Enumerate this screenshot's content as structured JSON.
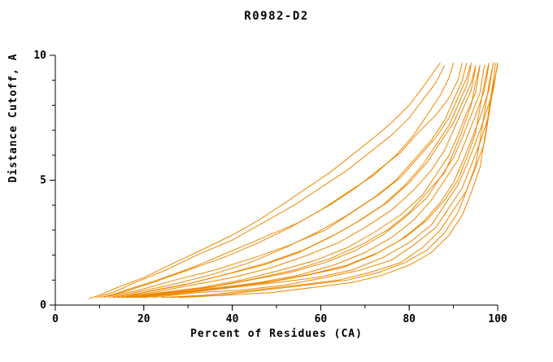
{
  "chart_data": {
    "type": "line",
    "title": "R0982-D2",
    "xlabel": "Percent of Residues (CA)",
    "ylabel": "Distance Cutoff, A",
    "xlim": [
      0,
      100
    ],
    "ylim": [
      0,
      10
    ],
    "x_ticks": [
      0,
      20,
      40,
      60,
      80,
      100
    ],
    "y_ticks": [
      0,
      5,
      10
    ],
    "x_minor_step": 10,
    "y_minor_step": 1,
    "grid": false,
    "legend": "none",
    "line_color": "#ee8800",
    "background": "#ffffff",
    "axis_color": "#000000",
    "series": [
      [
        [
          7.5,
          0.25
        ],
        [
          10,
          0.4
        ],
        [
          14,
          0.7
        ],
        [
          20,
          1.1
        ],
        [
          27,
          1.7
        ],
        [
          33,
          2.2
        ],
        [
          40,
          2.8
        ],
        [
          46,
          3.4
        ],
        [
          52,
          4.1
        ],
        [
          57,
          4.7
        ],
        [
          62,
          5.3
        ],
        [
          67,
          6.0
        ],
        [
          72,
          6.7
        ],
        [
          76,
          7.3
        ],
        [
          80,
          8.0
        ],
        [
          83,
          8.7
        ],
        [
          85,
          9.2
        ],
        [
          87,
          9.7
        ]
      ],
      [
        [
          9,
          0.3
        ],
        [
          13,
          0.5
        ],
        [
          18,
          0.9
        ],
        [
          25,
          1.4
        ],
        [
          32,
          2.0
        ],
        [
          40,
          2.6
        ],
        [
          47,
          3.3
        ],
        [
          54,
          4.0
        ],
        [
          60,
          4.7
        ],
        [
          66,
          5.4
        ],
        [
          71,
          6.1
        ],
        [
          76,
          6.8
        ],
        [
          80,
          7.5
        ],
        [
          83,
          8.2
        ],
        [
          86,
          8.9
        ],
        [
          88,
          9.6
        ]
      ],
      [
        [
          10,
          0.3
        ],
        [
          15,
          0.5
        ],
        [
          22,
          0.9
        ],
        [
          30,
          1.4
        ],
        [
          38,
          1.9
        ],
        [
          46,
          2.5
        ],
        [
          53,
          3.1
        ],
        [
          60,
          3.8
        ],
        [
          66,
          4.5
        ],
        [
          72,
          5.2
        ],
        [
          77,
          6.0
        ],
        [
          81,
          6.8
        ],
        [
          84,
          7.6
        ],
        [
          87,
          8.4
        ],
        [
          89,
          9.1
        ],
        [
          90,
          9.7
        ]
      ],
      [
        [
          12,
          0.3
        ],
        [
          18,
          0.5
        ],
        [
          26,
          0.8
        ],
        [
          35,
          1.2
        ],
        [
          44,
          1.7
        ],
        [
          52,
          2.3
        ],
        [
          59,
          2.9
        ],
        [
          66,
          3.6
        ],
        [
          72,
          4.3
        ],
        [
          77,
          5.0
        ],
        [
          81,
          5.8
        ],
        [
          85,
          6.6
        ],
        [
          88,
          7.4
        ],
        [
          90,
          8.2
        ],
        [
          92,
          9.0
        ],
        [
          93,
          9.7
        ]
      ],
      [
        [
          13,
          0.3
        ],
        [
          20,
          0.5
        ],
        [
          29,
          0.8
        ],
        [
          38,
          1.2
        ],
        [
          47,
          1.6
        ],
        [
          55,
          2.1
        ],
        [
          62,
          2.7
        ],
        [
          68,
          3.3
        ],
        [
          74,
          4.0
        ],
        [
          79,
          4.8
        ],
        [
          83,
          5.6
        ],
        [
          86,
          6.4
        ],
        [
          89,
          7.2
        ],
        [
          91,
          8.0
        ],
        [
          93,
          8.8
        ],
        [
          94,
          9.6
        ]
      ],
      [
        [
          14,
          0.3
        ],
        [
          22,
          0.5
        ],
        [
          31,
          0.8
        ],
        [
          40,
          1.1
        ],
        [
          49,
          1.5
        ],
        [
          57,
          2.0
        ],
        [
          64,
          2.5
        ],
        [
          70,
          3.1
        ],
        [
          76,
          3.8
        ],
        [
          81,
          4.6
        ],
        [
          85,
          5.4
        ],
        [
          88,
          6.2
        ],
        [
          90,
          7.0
        ],
        [
          92,
          7.8
        ],
        [
          94,
          8.6
        ],
        [
          95,
          9.5
        ]
      ],
      [
        [
          15,
          0.3
        ],
        [
          24,
          0.5
        ],
        [
          33,
          0.7
        ],
        [
          42,
          1.0
        ],
        [
          51,
          1.4
        ],
        [
          59,
          1.8
        ],
        [
          66,
          2.3
        ],
        [
          72,
          2.9
        ],
        [
          78,
          3.6
        ],
        [
          83,
          4.4
        ],
        [
          86,
          5.2
        ],
        [
          89,
          6.0
        ],
        [
          91,
          6.8
        ],
        [
          93,
          7.7
        ],
        [
          95,
          8.5
        ],
        [
          96,
          9.6
        ]
      ],
      [
        [
          16,
          0.3
        ],
        [
          25,
          0.5
        ],
        [
          35,
          0.7
        ],
        [
          44,
          1.0
        ],
        [
          53,
          1.3
        ],
        [
          61,
          1.7
        ],
        [
          68,
          2.2
        ],
        [
          74,
          2.8
        ],
        [
          79,
          3.5
        ],
        [
          84,
          4.3
        ],
        [
          87,
          5.1
        ],
        [
          90,
          5.9
        ],
        [
          92,
          6.7
        ],
        [
          94,
          7.6
        ],
        [
          96,
          8.5
        ],
        [
          97,
          9.6
        ]
      ],
      [
        [
          17,
          0.3
        ],
        [
          27,
          0.5
        ],
        [
          37,
          0.7
        ],
        [
          46,
          0.9
        ],
        [
          55,
          1.2
        ],
        [
          63,
          1.6
        ],
        [
          70,
          2.1
        ],
        [
          76,
          2.7
        ],
        [
          81,
          3.4
        ],
        [
          85,
          4.2
        ],
        [
          88,
          5.0
        ],
        [
          91,
          5.8
        ],
        [
          93,
          6.7
        ],
        [
          95,
          7.6
        ],
        [
          97,
          8.6
        ],
        [
          98,
          9.6
        ]
      ],
      [
        [
          18,
          0.3
        ],
        [
          28,
          0.5
        ],
        [
          38,
          0.7
        ],
        [
          48,
          0.9
        ],
        [
          57,
          1.2
        ],
        [
          65,
          1.5
        ],
        [
          72,
          2.0
        ],
        [
          78,
          2.6
        ],
        [
          83,
          3.3
        ],
        [
          87,
          4.1
        ],
        [
          90,
          4.9
        ],
        [
          92,
          5.7
        ],
        [
          94,
          6.6
        ],
        [
          96,
          7.5
        ],
        [
          98,
          8.6
        ],
        [
          99,
          9.7
        ]
      ],
      [
        [
          20,
          0.3
        ],
        [
          30,
          0.5
        ],
        [
          40,
          0.7
        ],
        [
          50,
          0.9
        ],
        [
          59,
          1.1
        ],
        [
          67,
          1.4
        ],
        [
          74,
          1.9
        ],
        [
          80,
          2.5
        ],
        [
          85,
          3.2
        ],
        [
          88,
          4.0
        ],
        [
          91,
          4.8
        ],
        [
          93,
          5.6
        ],
        [
          95,
          6.5
        ],
        [
          97,
          7.5
        ],
        [
          99,
          8.6
        ],
        [
          100,
          9.7
        ]
      ],
      [
        [
          22,
          0.3
        ],
        [
          32,
          0.5
        ],
        [
          42,
          0.6
        ],
        [
          52,
          0.8
        ],
        [
          61,
          1.1
        ],
        [
          69,
          1.4
        ],
        [
          76,
          1.8
        ],
        [
          81,
          2.4
        ],
        [
          86,
          3.1
        ],
        [
          89,
          3.9
        ],
        [
          92,
          4.7
        ],
        [
          94,
          5.6
        ],
        [
          96,
          6.5
        ],
        [
          98,
          7.6
        ],
        [
          99,
          8.8
        ],
        [
          100,
          9.6
        ]
      ],
      [
        [
          24,
          0.3
        ],
        [
          34,
          0.4
        ],
        [
          45,
          0.6
        ],
        [
          55,
          0.8
        ],
        [
          64,
          1.0
        ],
        [
          71,
          1.3
        ],
        [
          78,
          1.7
        ],
        [
          83,
          2.3
        ],
        [
          87,
          3.0
        ],
        [
          90,
          3.8
        ],
        [
          93,
          4.6
        ],
        [
          95,
          5.5
        ],
        [
          97,
          6.5
        ],
        [
          98,
          7.6
        ],
        [
          99,
          8.7
        ],
        [
          100,
          9.7
        ]
      ],
      [
        [
          26,
          0.3
        ],
        [
          37,
          0.4
        ],
        [
          47,
          0.6
        ],
        [
          57,
          0.8
        ],
        [
          66,
          1.0
        ],
        [
          73,
          1.3
        ],
        [
          79,
          1.7
        ],
        [
          84,
          2.2
        ],
        [
          88,
          2.9
        ],
        [
          91,
          3.7
        ],
        [
          93,
          4.6
        ],
        [
          95,
          5.6
        ],
        [
          96,
          6.6
        ],
        [
          97,
          7.7
        ],
        [
          98,
          8.8
        ],
        [
          99,
          9.7
        ]
      ],
      [
        [
          28,
          0.3
        ],
        [
          39,
          0.4
        ],
        [
          49,
          0.5
        ],
        [
          58,
          0.7
        ],
        [
          67,
          0.9
        ],
        [
          74,
          1.2
        ],
        [
          80,
          1.6
        ],
        [
          85,
          2.1
        ],
        [
          89,
          2.8
        ],
        [
          92,
          3.6
        ],
        [
          94,
          4.5
        ],
        [
          96,
          5.5
        ],
        [
          97,
          6.6
        ],
        [
          98,
          7.8
        ],
        [
          99,
          9.0
        ],
        [
          99.5,
          9.7
        ]
      ],
      [
        [
          11,
          0.3
        ],
        [
          16,
          0.6
        ],
        [
          23,
          1.0
        ],
        [
          31,
          1.5
        ],
        [
          39,
          2.1
        ],
        [
          47,
          2.7
        ],
        [
          55,
          3.3
        ],
        [
          62,
          4.0
        ],
        [
          68,
          4.7
        ],
        [
          73,
          5.4
        ],
        [
          78,
          6.1
        ],
        [
          82,
          6.9
        ],
        [
          86,
          7.6
        ],
        [
          89,
          8.3
        ],
        [
          91,
          9.0
        ],
        [
          92,
          9.7
        ]
      ],
      [
        [
          12,
          0.35
        ],
        [
          19,
          0.6
        ],
        [
          27,
          1.0
        ],
        [
          36,
          1.4
        ],
        [
          45,
          1.9
        ],
        [
          53,
          2.4
        ],
        [
          61,
          3.0
        ],
        [
          67,
          3.7
        ],
        [
          73,
          4.4
        ],
        [
          78,
          5.1
        ],
        [
          82,
          5.9
        ],
        [
          86,
          6.7
        ],
        [
          89,
          7.5
        ],
        [
          91,
          8.3
        ],
        [
          93,
          9.1
        ],
        [
          94,
          9.7
        ]
      ],
      [
        [
          15,
          0.3
        ],
        [
          21,
          0.55
        ],
        [
          30,
          0.85
        ],
        [
          39,
          1.25
        ],
        [
          48,
          1.7
        ],
        [
          56,
          2.2
        ],
        [
          63,
          2.8
        ],
        [
          69,
          3.4
        ],
        [
          75,
          4.1
        ],
        [
          80,
          4.9
        ],
        [
          84,
          5.7
        ],
        [
          87,
          6.5
        ],
        [
          90,
          7.3
        ],
        [
          92,
          8.1
        ],
        [
          94,
          8.9
        ],
        [
          95,
          9.6
        ]
      ],
      [
        [
          16,
          0.3
        ],
        [
          26,
          0.5
        ],
        [
          36,
          0.75
        ],
        [
          45,
          1.05
        ],
        [
          54,
          1.4
        ],
        [
          62,
          1.85
        ],
        [
          69,
          2.4
        ],
        [
          75,
          3.0
        ],
        [
          80,
          3.7
        ],
        [
          84,
          4.5
        ],
        [
          88,
          5.3
        ],
        [
          90,
          6.1
        ],
        [
          92,
          7.0
        ],
        [
          94,
          8.0
        ],
        [
          95,
          8.9
        ],
        [
          96,
          9.6
        ]
      ],
      [
        [
          19,
          0.3
        ],
        [
          29,
          0.5
        ],
        [
          39,
          0.7
        ],
        [
          49,
          0.95
        ],
        [
          58,
          1.25
        ],
        [
          66,
          1.6
        ],
        [
          73,
          2.1
        ],
        [
          79,
          2.7
        ],
        [
          84,
          3.4
        ],
        [
          88,
          4.2
        ],
        [
          91,
          5.0
        ],
        [
          93,
          5.9
        ],
        [
          95,
          6.9
        ],
        [
          96,
          7.9
        ],
        [
          97,
          8.9
        ],
        [
          98,
          9.7
        ]
      ]
    ]
  }
}
